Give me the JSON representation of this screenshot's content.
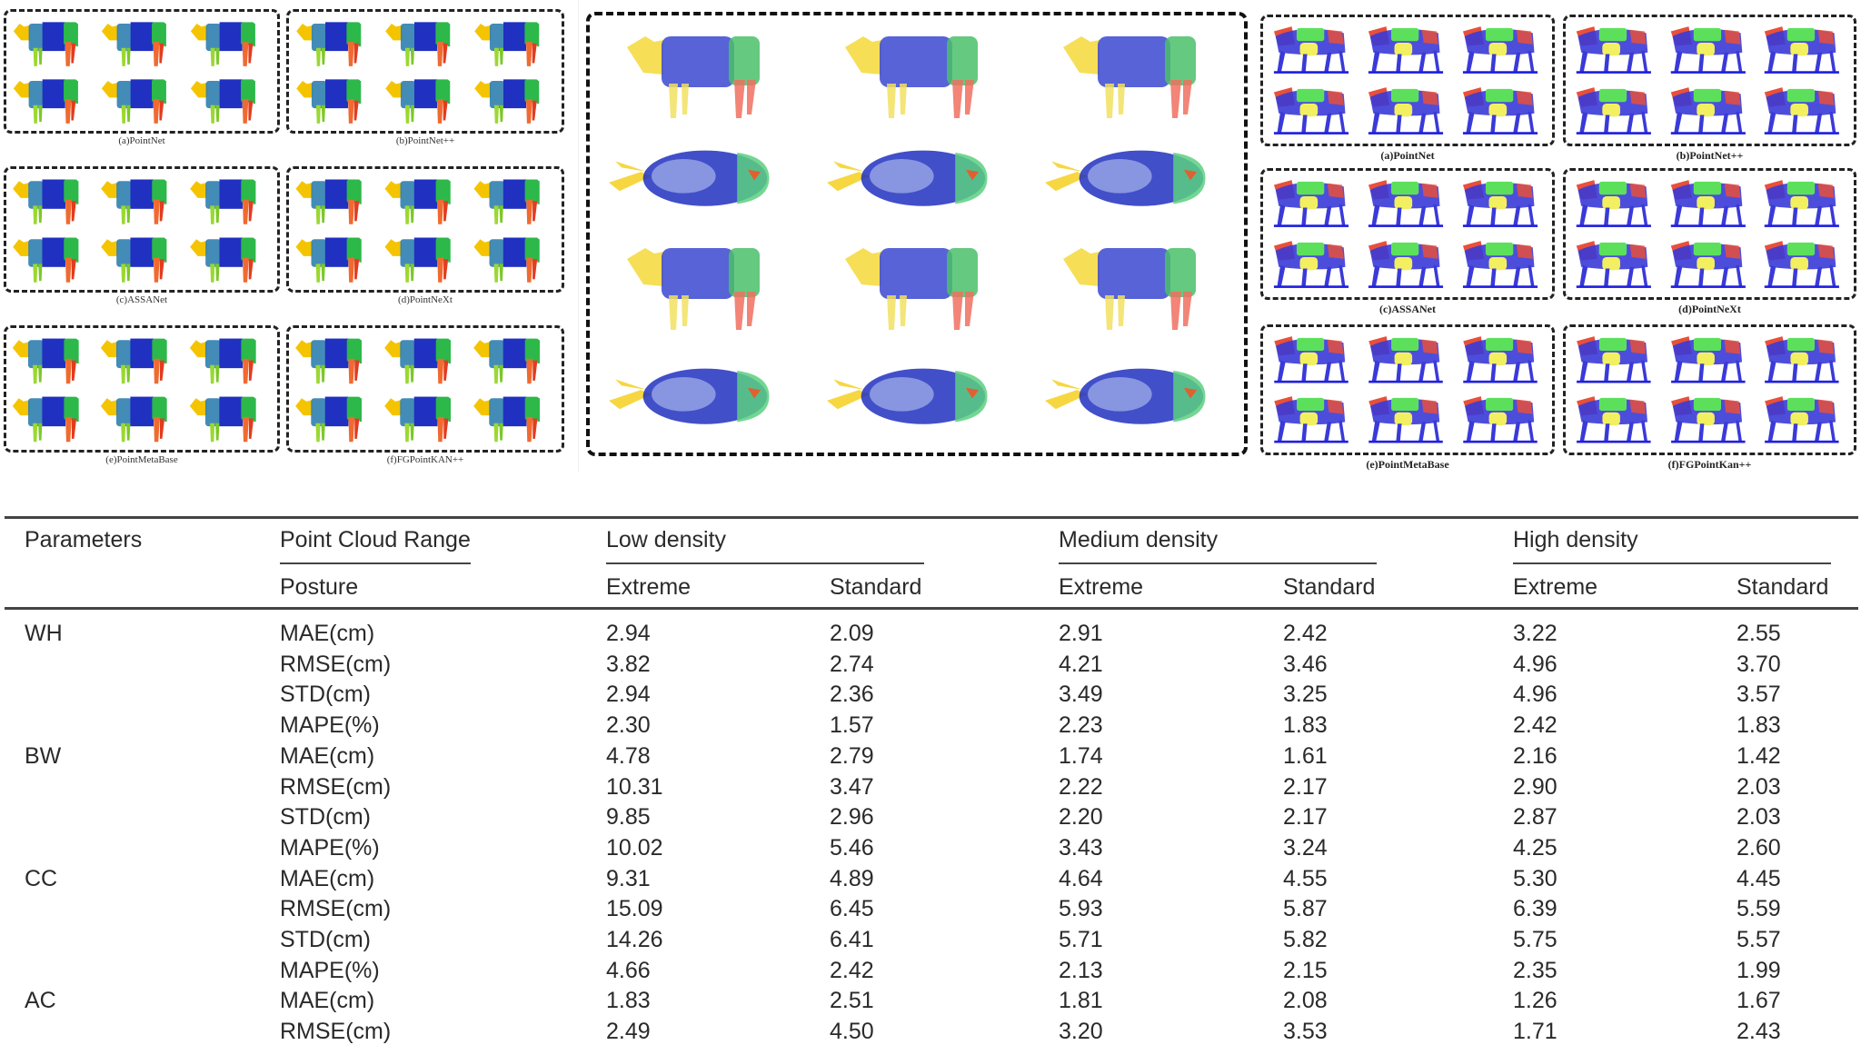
{
  "figure_left": {
    "captions": [
      "(a)PointNet",
      "(b)PointNet++",
      "(c)ASSANet",
      "(d)PointNeXt",
      "(e)PointMetaBase",
      "(f)FGPointKAN++"
    ],
    "colors": {
      "head": "#f5c400",
      "neck": "#2f7fb0",
      "body": "#2030c0",
      "rear": "#2db84a",
      "front_leg": "#9bd832",
      "rear_leg": "#f06a30"
    }
  },
  "figure_right": {
    "captions": [
      "(a)PointNet",
      "(b)PointNet++",
      "(c)ASSANet",
      "(d)PointNeXt",
      "(e)PointMetaBase",
      "(f)FGPointKan++"
    ],
    "colors": {
      "body": "#3a3ad8",
      "head": "#e8503a",
      "back": "#5ce05c",
      "belly": "#f2f060"
    }
  },
  "table": {
    "header": {
      "parameters": "Parameters",
      "range": "Point Cloud Range",
      "posture": "Posture",
      "groups": [
        "Low density",
        "Medium density",
        "High density"
      ],
      "subcols": [
        "Extreme",
        "Standard",
        "Extreme",
        "Standard",
        "Extreme",
        "Standard"
      ]
    },
    "rows": [
      {
        "param": "WH",
        "metric": "MAE(cm)",
        "values": [
          "2.94",
          "2.09",
          "2.91",
          "2.42",
          "3.22",
          "2.55"
        ]
      },
      {
        "param": "",
        "metric": "RMSE(cm)",
        "values": [
          "3.82",
          "2.74",
          "4.21",
          "3.46",
          "4.96",
          "3.70"
        ]
      },
      {
        "param": "",
        "metric": "STD(cm)",
        "values": [
          "2.94",
          "2.36",
          "3.49",
          "3.25",
          "4.96",
          "3.57"
        ]
      },
      {
        "param": "",
        "metric": "MAPE(%)",
        "values": [
          "2.30",
          "1.57",
          "2.23",
          "1.83",
          "2.42",
          "1.83"
        ]
      },
      {
        "param": "BW",
        "metric": "MAE(cm)",
        "values": [
          "4.78",
          "2.79",
          "1.74",
          "1.61",
          "2.16",
          "1.42"
        ]
      },
      {
        "param": "",
        "metric": "RMSE(cm)",
        "values": [
          "10.31",
          "3.47",
          "2.22",
          "2.17",
          "2.90",
          "2.03"
        ]
      },
      {
        "param": "",
        "metric": "STD(cm)",
        "values": [
          "9.85",
          "2.96",
          "2.20",
          "2.17",
          "2.87",
          "2.03"
        ]
      },
      {
        "param": "",
        "metric": "MAPE(%)",
        "values": [
          "10.02",
          "5.46",
          "3.43",
          "3.24",
          "4.25",
          "2.60"
        ]
      },
      {
        "param": "CC",
        "metric": "MAE(cm)",
        "values": [
          "9.31",
          "4.89",
          "4.64",
          "4.55",
          "5.30",
          "4.45"
        ]
      },
      {
        "param": "",
        "metric": "RMSE(cm)",
        "values": [
          "15.09",
          "6.45",
          "5.93",
          "5.87",
          "6.39",
          "5.59"
        ]
      },
      {
        "param": "",
        "metric": "STD(cm)",
        "values": [
          "14.26",
          "6.41",
          "5.71",
          "5.82",
          "5.75",
          "5.57"
        ]
      },
      {
        "param": "",
        "metric": "MAPE(%)",
        "values": [
          "4.66",
          "2.42",
          "2.13",
          "2.15",
          "2.35",
          "1.99"
        ]
      },
      {
        "param": "AC",
        "metric": "MAE(cm)",
        "values": [
          "1.83",
          "2.51",
          "1.81",
          "2.08",
          "1.26",
          "1.67"
        ]
      },
      {
        "param": "",
        "metric": "RMSE(cm)",
        "values": [
          "2.49",
          "4.50",
          "3.20",
          "3.53",
          "1.71",
          "2.43"
        ]
      }
    ]
  }
}
